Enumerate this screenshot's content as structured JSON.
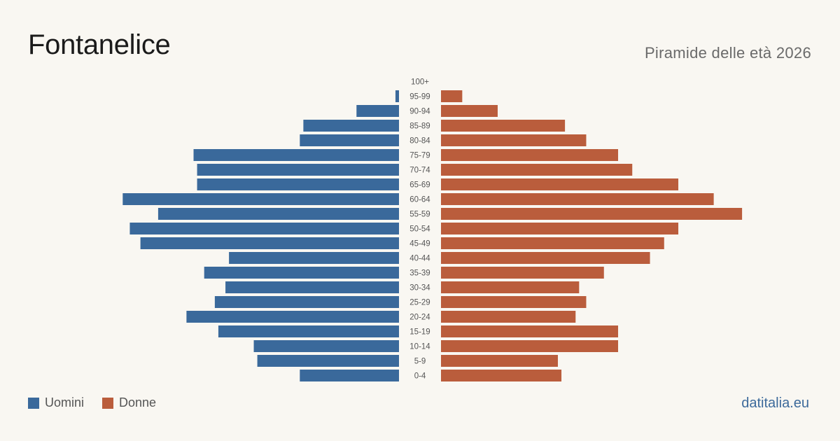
{
  "header": {
    "title": "Fontanelice",
    "subtitle": "Piramide delle età 2026"
  },
  "legend": {
    "men_label": "Uomini",
    "women_label": "Donne"
  },
  "footer": {
    "brand": "datitalia.eu"
  },
  "colors": {
    "men": "#3a699b",
    "women": "#ba5d3c",
    "background": "#f9f7f2"
  },
  "chart_data": {
    "type": "bar",
    "orientation": "horizontal-pyramid",
    "categories": [
      "100+",
      "95-99",
      "90-94",
      "85-89",
      "80-84",
      "75-79",
      "70-74",
      "65-69",
      "60-64",
      "55-59",
      "50-54",
      "45-49",
      "40-44",
      "35-39",
      "30-34",
      "25-29",
      "20-24",
      "15-19",
      "10-14",
      "5-9",
      "0-4"
    ],
    "series": [
      {
        "name": "Uomini",
        "values": [
          0,
          1,
          12,
          27,
          28,
          58,
          57,
          57,
          78,
          68,
          76,
          73,
          48,
          55,
          49,
          52,
          60,
          51,
          41,
          40,
          28
        ]
      },
      {
        "name": "Donne",
        "values": [
          0,
          6,
          16,
          35,
          41,
          50,
          54,
          67,
          77,
          85,
          67,
          63,
          59,
          46,
          39,
          41,
          38,
          50,
          50,
          33,
          34
        ]
      }
    ],
    "legend_position": "bottom-left",
    "grid": false
  }
}
